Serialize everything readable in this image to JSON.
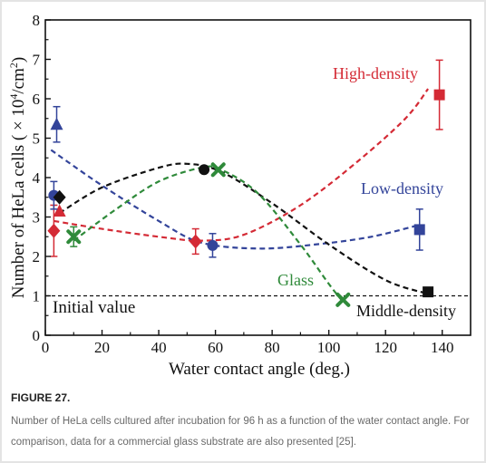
{
  "figure": {
    "title": "FIGURE 27.",
    "caption": "Number of HeLa cells cultured after incubation for 96 h as a function of the water contact angle. For comparison, data for a commercial glass substrate are also presented [25]."
  },
  "chart_data": {
    "type": "scatter",
    "xlabel": "Water contact angle (deg.)",
    "ylabel_main": "Number of HeLa cells ( × 10",
    "ylabel_exp1": "4",
    "ylabel_mid": "/cm",
    "ylabel_exp2": "2",
    "ylabel_end": ")",
    "xlim": [
      0,
      150
    ],
    "ylim": [
      0,
      8
    ],
    "xticks": [
      "0",
      "20",
      "40",
      "60",
      "80",
      "100",
      "120",
      "140"
    ],
    "yticks": [
      "0",
      "1",
      "2",
      "3",
      "4",
      "5",
      "6",
      "7",
      "8"
    ],
    "initial_value": {
      "y": 1,
      "label": "Initial value"
    },
    "series": [
      {
        "name": "High-density",
        "color": "#d42a35",
        "points": [
          {
            "x": 3,
            "y": 2.65,
            "err": 0.65,
            "marker": "diamond"
          },
          {
            "x": 5,
            "y": 3.15,
            "err": 0,
            "marker": "triangle"
          },
          {
            "x": 53,
            "y": 2.38,
            "err": 0.32,
            "marker": "diamond"
          },
          {
            "x": 139,
            "y": 6.1,
            "err": 0.88,
            "marker": "square"
          }
        ],
        "trend": [
          [
            3,
            2.9
          ],
          [
            20,
            2.7
          ],
          [
            40,
            2.5
          ],
          [
            55,
            2.4
          ],
          [
            70,
            2.55
          ],
          [
            90,
            3.3
          ],
          [
            110,
            4.4
          ],
          [
            127,
            5.5
          ],
          [
            135,
            6.25
          ]
        ]
      },
      {
        "name": "Low-density",
        "color": "#33449a",
        "points": [
          {
            "x": 4,
            "y": 5.35,
            "err": 0.45,
            "marker": "triangle"
          },
          {
            "x": 3,
            "y": 3.55,
            "err": 0.35,
            "marker": "circle"
          },
          {
            "x": 59,
            "y": 2.28,
            "err": 0.3,
            "marker": "circle"
          },
          {
            "x": 132,
            "y": 2.68,
            "err": 0.52,
            "marker": "square"
          }
        ],
        "trend": [
          [
            2,
            4.7
          ],
          [
            20,
            3.8
          ],
          [
            40,
            2.9
          ],
          [
            55,
            2.35
          ],
          [
            75,
            2.2
          ],
          [
            95,
            2.3
          ],
          [
            115,
            2.5
          ],
          [
            132,
            2.8
          ]
        ]
      },
      {
        "name": "Middle-density",
        "color": "#111111",
        "points": [
          {
            "x": 5,
            "y": 3.5,
            "err": 0,
            "marker": "diamond"
          },
          {
            "x": 56,
            "y": 4.2,
            "err": 0,
            "marker": "circle"
          },
          {
            "x": 135,
            "y": 1.1,
            "err": 0.07,
            "marker": "square"
          }
        ],
        "trend": [
          [
            5,
            3.1
          ],
          [
            20,
            3.75
          ],
          [
            40,
            4.25
          ],
          [
            50,
            4.35
          ],
          [
            62,
            4.15
          ],
          [
            80,
            3.35
          ],
          [
            100,
            2.3
          ],
          [
            120,
            1.4
          ],
          [
            135,
            1.05
          ]
        ]
      },
      {
        "name": "Glass",
        "color": "#2f8a3a",
        "points": [
          {
            "x": 10,
            "y": 2.5,
            "err": 0.25,
            "marker": "x"
          },
          {
            "x": 61,
            "y": 4.2,
            "err": 0,
            "marker": "x"
          },
          {
            "x": 105,
            "y": 0.9,
            "err": 0,
            "marker": "x"
          }
        ],
        "trend": [
          [
            10,
            2.4
          ],
          [
            25,
            3.2
          ],
          [
            40,
            3.9
          ],
          [
            55,
            4.25
          ],
          [
            62,
            4.2
          ],
          [
            75,
            3.6
          ],
          [
            90,
            2.3
          ],
          [
            100,
            1.3
          ],
          [
            105,
            0.85
          ]
        ]
      }
    ],
    "labels": {
      "high_density": "High-density",
      "low_density": "Low-density",
      "glass": "Glass",
      "middle_density": "Middle-density"
    }
  }
}
